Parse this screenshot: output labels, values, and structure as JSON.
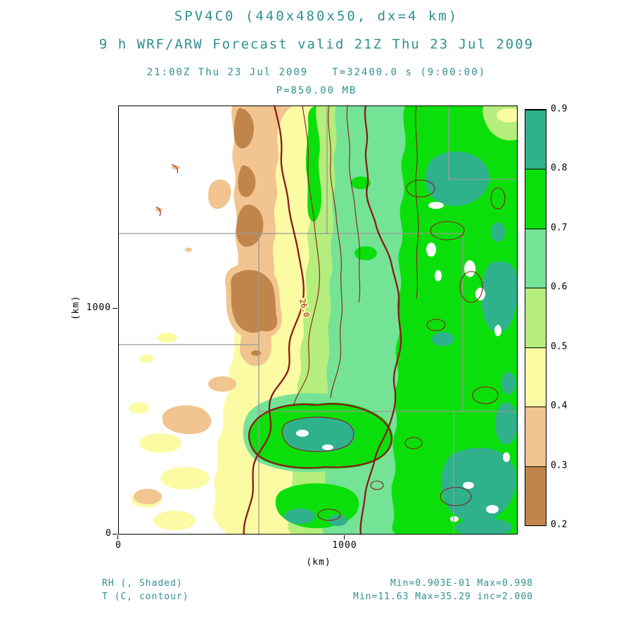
{
  "theme": {
    "accent_text": "#2f8f90",
    "contour_color": "#8b1a1a",
    "state_line_color": "#999999",
    "axis_color": "#000000"
  },
  "header": {
    "title": "SPV4C0 (440x480x50, dx=4 km)",
    "subtitle": "9 h WRF/ARW Forecast valid 21Z Thu 23 Jul 2009",
    "valid_time": "21:00Z Thu 23 Jul 2009",
    "sim_time": "T=32400.0 s (9:00:00)",
    "level": "P=850.00 MB"
  },
  "axes": {
    "x_label": "(km)",
    "y_label": "(km)",
    "x_ticks": [
      "0",
      "1000"
    ],
    "y_ticks": [
      "0",
      "1000"
    ]
  },
  "colorbar": {
    "labels": [
      "0.2",
      "0.3",
      "0.4",
      "0.5",
      "0.6",
      "0.7",
      "0.8",
      "0.9"
    ]
  },
  "map": {
    "contour_label": "26.0"
  },
  "footer": {
    "shaded_legend": "RH (, Shaded)",
    "contour_legend": "T (C, contour)",
    "shaded_stats": "Min=0.903E-01 Max=0.998",
    "contour_stats": "Min=11.63 Max=35.29 inc=2.000"
  },
  "chart_data": {
    "type": "heatmap",
    "title": "SPV4C0 (440x480x50, dx=4 km)",
    "subtitle": "9 h WRF/ARW Forecast valid 21Z Thu 23 Jul 2009",
    "valid_time": "21:00Z Thu 23 Jul 2009",
    "sim_time_seconds": 32400.0,
    "sim_time_hms": "9:00:00",
    "forecast_hour": 9,
    "model": "WRF/ARW",
    "grid": "440x480x50",
    "dx_km": 4,
    "pressure_level_mb": 850.0,
    "xlabel": "(km)",
    "ylabel": "(km)",
    "x_range_km": [
      0,
      1760
    ],
    "y_range_km": [
      0,
      1920
    ],
    "x_ticks": [
      0,
      1000
    ],
    "y_ticks": [
      0,
      1000
    ],
    "grid_lines": "state borders (gray)",
    "legend_position": "right colorbar",
    "shaded": {
      "variable": "RH",
      "legend": "RH (, Shaded)",
      "min": 0.0903,
      "max": 0.998,
      "levels": [
        0.2,
        0.3,
        0.4,
        0.5,
        0.6,
        0.7,
        0.8,
        0.9
      ],
      "colors": [
        "#c0854a",
        "#f2c490",
        "#fbfba4",
        "#b5ee7c",
        "#74e396",
        "#0bdf0b",
        "#2fb28c"
      ]
    },
    "contours": {
      "variable": "T",
      "units": "C",
      "legend": "T (C, contour)",
      "min": 11.63,
      "max": 35.29,
      "interval": 2.0,
      "labeled_value": 26.0,
      "color": "#8b1a1a"
    }
  }
}
